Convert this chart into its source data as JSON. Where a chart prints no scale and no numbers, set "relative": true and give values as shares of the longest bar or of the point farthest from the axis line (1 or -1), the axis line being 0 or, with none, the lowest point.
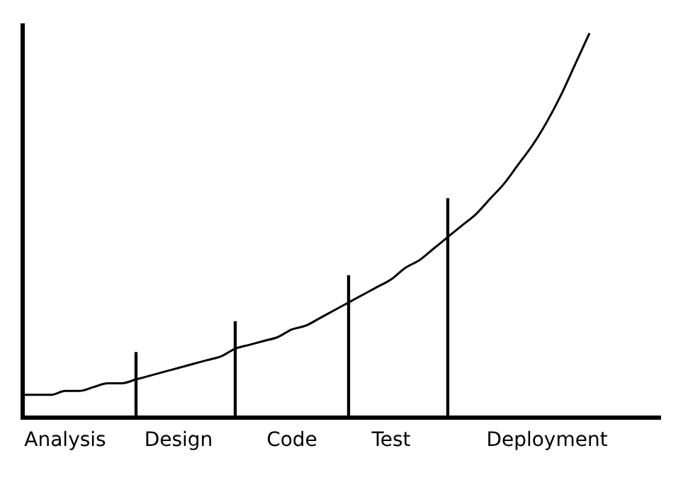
{
  "chart_data": {
    "type": "line",
    "relative": true,
    "marker": "none",
    "grid": false,
    "legend": false,
    "categories": [
      null,
      null,
      null,
      "Analysis",
      null,
      null,
      null,
      null,
      null,
      null,
      null,
      "Design",
      null,
      null,
      null,
      null,
      null,
      null,
      null,
      "Code",
      null,
      null,
      null,
      null,
      null,
      null,
      "Test",
      null,
      null,
      null,
      null,
      null,
      null,
      null,
      null,
      null,
      null,
      "Deployment",
      null,
      null,
      null,
      null,
      null,
      null,
      null,
      null
    ],
    "series": [
      {
        "color": "#000000",
        "values": [
          0.06,
          0.06,
          0.06,
          0.07,
          0.07,
          0.08,
          0.09,
          0.09,
          0.1,
          0.11,
          0.12,
          0.13,
          0.14,
          0.15,
          0.16,
          0.18,
          0.19,
          0.2,
          0.21,
          0.23,
          0.24,
          0.26,
          0.28,
          0.3,
          0.32,
          0.34,
          0.36,
          0.39,
          0.41,
          0.44,
          0.47,
          0.5,
          0.53,
          0.57,
          0.61,
          0.66,
          0.71,
          0.77,
          0.84,
          0.92,
          1,
          null,
          null,
          null,
          null,
          null
        ]
      },
      {
        "type": "bar",
        "color": "#000000",
        "values": [
          null,
          null,
          null,
          null,
          null,
          null,
          null,
          null,
          0.17,
          null,
          null,
          null,
          null,
          null,
          null,
          0.25,
          null,
          null,
          null,
          null,
          null,
          null,
          null,
          0.37,
          null,
          null,
          null,
          null,
          null,
          null,
          0.57,
          null,
          null,
          null,
          null,
          null,
          null,
          null,
          null,
          null,
          null,
          null,
          null,
          null,
          null,
          null
        ]
      }
    ]
  }
}
